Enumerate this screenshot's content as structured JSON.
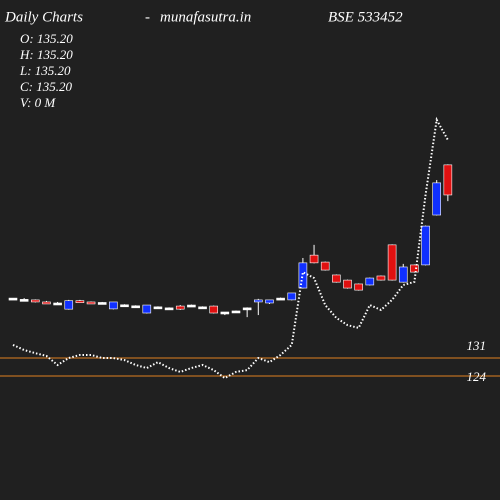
{
  "chart_data": {
    "type": "candlestick",
    "title": "Daily Charts",
    "separator": "-",
    "site": "munafasutra.in",
    "symbol": "BSE 533452",
    "info": [
      "O: 135.20",
      "H: 135.20",
      "L: 135.20",
      "C: 135.20",
      "V: 0  M"
    ],
    "open": [
      154.3,
      153.8,
      153.6,
      152.8,
      152.4,
      150.0,
      153.3,
      152.8,
      152.6,
      150.1,
      151.7,
      151.3,
      148.5,
      150.9,
      150.5,
      151.2,
      151.6,
      150.9,
      151.2,
      148.9,
      149.3,
      150.5,
      152.8,
      152.4,
      154.3,
      153.6,
      158.2,
      171.0,
      168.3,
      163.3,
      161.3,
      159.8,
      159.4,
      162.9,
      175.0,
      160.5,
      167.2,
      167.2,
      186.6,
      206.1
    ],
    "high": [
      154.3,
      154.3,
      153.8,
      153.2,
      152.8,
      153.6,
      153.6,
      153.0,
      152.8,
      152.8,
      151.9,
      151.5,
      151.6,
      151.1,
      150.7,
      151.6,
      151.8,
      151.1,
      151.4,
      148.9,
      149.5,
      150.7,
      154.0,
      153.6,
      154.5,
      156.3,
      169.9,
      175.0,
      168.5,
      163.5,
      161.5,
      160.0,
      162.3,
      163.1,
      175.2,
      167.6,
      167.4,
      182.5,
      200.2,
      206.3
    ],
    "low": [
      154.3,
      153.4,
      152.6,
      152.0,
      151.8,
      149.8,
      152.8,
      152.4,
      152.2,
      149.9,
      151.3,
      150.9,
      148.3,
      150.5,
      150.1,
      149.7,
      151.2,
      150.5,
      148.3,
      147.7,
      148.9,
      146.9,
      147.7,
      152.0,
      154.1,
      153.4,
      158.0,
      167.8,
      165.0,
      160.3,
      158.0,
      157.2,
      159.2,
      161.1,
      161.1,
      160.3,
      164.2,
      167.0,
      186.4,
      192.0
    ],
    "close": [
      154.3,
      153.8,
      152.8,
      152.4,
      152.4,
      153.3,
      153.0,
      152.6,
      152.6,
      152.8,
      151.7,
      151.3,
      151.6,
      150.9,
      150.5,
      150.0,
      151.6,
      150.9,
      148.5,
      148.9,
      149.3,
      150.5,
      153.6,
      153.6,
      154.3,
      156.3,
      168.0,
      168.0,
      165.2,
      160.5,
      158.2,
      157.4,
      162.1,
      161.3,
      161.3,
      166.4,
      164.4,
      182.3,
      199.1,
      194.4
    ],
    "average": [
      136.1,
      134.1,
      132.9,
      131.8,
      128.3,
      131.0,
      132.2,
      132.2,
      131.0,
      131.0,
      130.2,
      128.3,
      127.1,
      129.4,
      127.1,
      125.6,
      127.1,
      128.3,
      126.3,
      123.2,
      125.6,
      126.3,
      131.0,
      129.4,
      132.2,
      136.1,
      164.4,
      162.1,
      151.6,
      146.6,
      143.8,
      142.7,
      151.6,
      149.7,
      153.6,
      159.4,
      160.6,
      194.4,
      223.6,
      215.8
    ],
    "levels": [
      131,
      124
    ],
    "ylim": [
      75.8,
      270.2
    ],
    "up_color": "#1030ff",
    "down_color": "#e01010",
    "flat_color": "#ffffff",
    "average_color": "#ffffff",
    "level_color": "#e08020"
  }
}
